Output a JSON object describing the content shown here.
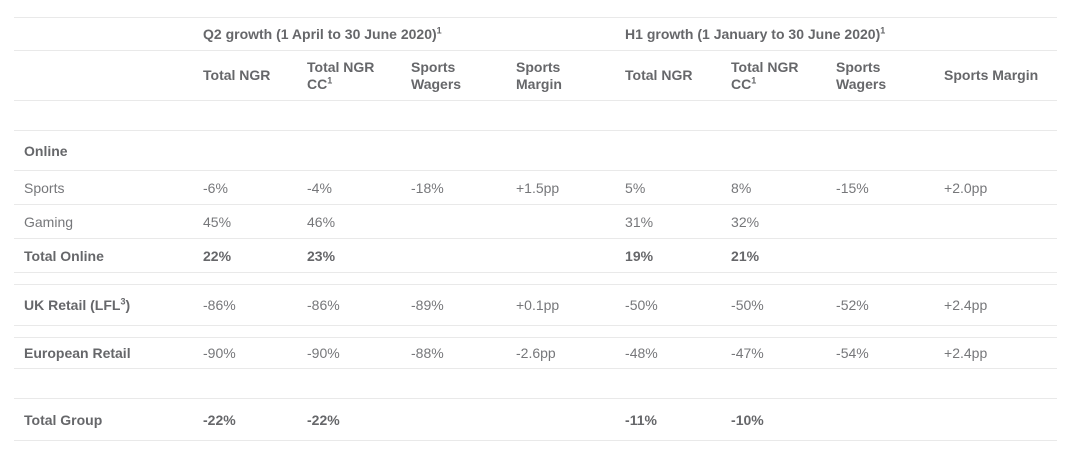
{
  "colors": {
    "background": "#ffffff",
    "text": "#76777a",
    "text_strong": "#66676a",
    "divider": "#e9e9e9"
  },
  "chart_data": {
    "type": "table",
    "period_headers": [
      {
        "text": "Q2 growth (1 April to 30 June 2020)",
        "sup": "1"
      },
      {
        "text": "H1 growth (1 January to 30 June 2020)",
        "sup": "1"
      }
    ],
    "columns": [
      {
        "text": "Total NGR",
        "sup": ""
      },
      {
        "text": "Total NGR CC",
        "sup": "1"
      },
      {
        "text": "Sports Wagers",
        "sup": ""
      },
      {
        "text": "Sports Margin",
        "sup": ""
      },
      {
        "text": "Total NGR",
        "sup": ""
      },
      {
        "text": "Total NGR CC",
        "sup": "1"
      },
      {
        "text": "Sports Wagers",
        "sup": ""
      },
      {
        "text": "Sports Margin",
        "sup": ""
      }
    ],
    "rows": [
      {
        "label": "Online",
        "style": "section",
        "values": [
          "",
          "",
          "",
          "",
          "",
          "",
          "",
          ""
        ]
      },
      {
        "label": "Sports",
        "style": "normal",
        "values": [
          "-6%",
          "-4%",
          "-18%",
          "+1.5pp",
          "5%",
          "8%",
          "-15%",
          "+2.0pp"
        ]
      },
      {
        "label": "Gaming",
        "style": "normal",
        "values": [
          "45%",
          "46%",
          "",
          "",
          "31%",
          "32%",
          "",
          ""
        ]
      },
      {
        "label": "Total Online",
        "style": "total",
        "values": [
          "22%",
          "23%",
          "",
          "",
          "19%",
          "21%",
          "",
          ""
        ]
      },
      {
        "label": "UK Retail (LFL³)",
        "label_pre": "UK Retail (LFL",
        "label_sup": "3",
        "label_post": ")",
        "style": "bold-label",
        "values": [
          "-86%",
          "-86%",
          "-89%",
          "+0.1pp",
          "-50%",
          "-50%",
          "-52%",
          "+2.4pp"
        ]
      },
      {
        "label": "European Retail",
        "style": "bold-label",
        "values": [
          "-90%",
          "-90%",
          "-88%",
          "-2.6pp",
          "-48%",
          "-47%",
          "-54%",
          "+2.4pp"
        ]
      },
      {
        "label": "Total Group",
        "style": "total",
        "values": [
          "-22%",
          "-22%",
          "",
          "",
          "-11%",
          "-10%",
          "",
          ""
        ]
      }
    ]
  }
}
